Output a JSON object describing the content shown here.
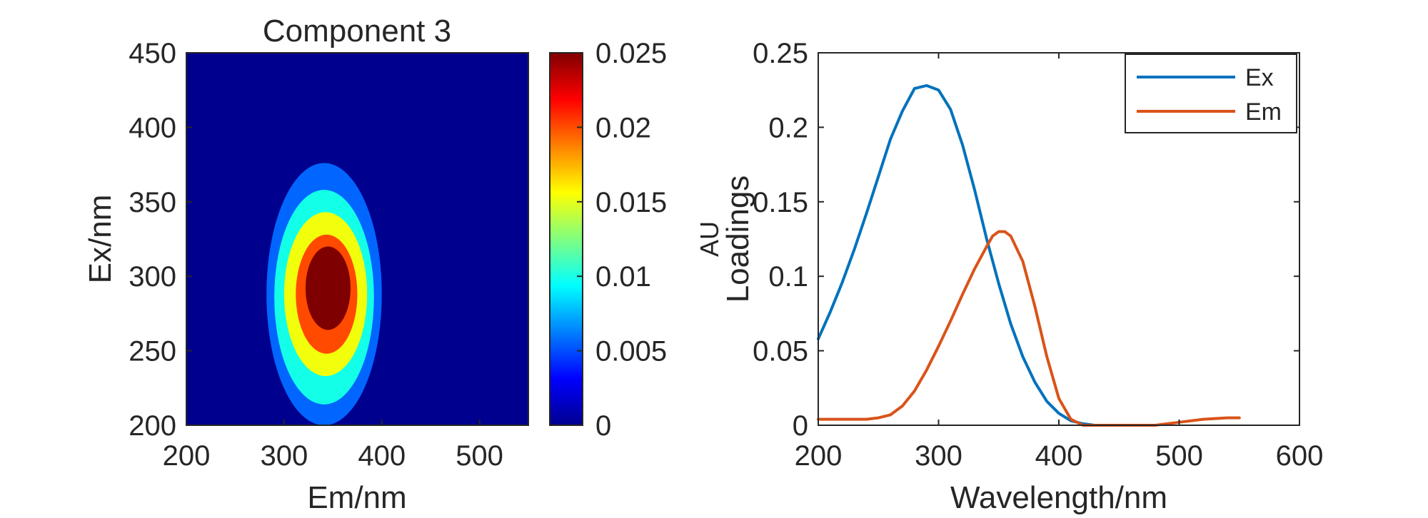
{
  "chart_data": [
    {
      "type": "contour",
      "title": "Component 3",
      "xlabel": "Em/nm",
      "ylabel": "Ex/nm",
      "xlim": [
        200,
        550
      ],
      "ylim": [
        200,
        450
      ],
      "x_ticks": [
        "200",
        "300",
        "400",
        "500"
      ],
      "y_ticks": [
        "200",
        "250",
        "300",
        "350",
        "400",
        "450"
      ],
      "peak": {
        "em": 350,
        "ex": 292,
        "value": 0.025
      },
      "levels": [
        {
          "value": 0.0,
          "color": "#00008f",
          "em_min": 200,
          "em_max": 550,
          "ex_min": 200,
          "ex_max": 450
        },
        {
          "value": 0.00417,
          "color": "#0066ff",
          "em_min": 282,
          "em_max": 400,
          "ex_min": 200,
          "ex_max": 376
        },
        {
          "value": 0.00833,
          "color": "#13ffe8",
          "em_min": 290,
          "em_max": 392,
          "ex_min": 214,
          "ex_max": 358
        },
        {
          "value": 0.0125,
          "color": "#f2ff0c",
          "em_min": 300,
          "em_max": 385,
          "ex_min": 233,
          "ex_max": 343
        },
        {
          "value": 0.01667,
          "color": "#ff4a00",
          "em_min": 312,
          "em_max": 375,
          "ex_min": 248,
          "ex_max": 328
        },
        {
          "value": 0.02083,
          "color": "#7f0000",
          "em_min": 322,
          "em_max": 368,
          "ex_min": 264,
          "ex_max": 320
        }
      ],
      "colorbar": {
        "min": 0,
        "max": 0.025,
        "ticks": [
          "0",
          "0.005",
          "0.01",
          "0.015",
          "0.02",
          "0.025"
        ],
        "colormap": [
          "#00008f",
          "#0000ff",
          "#0080ff",
          "#00ffff",
          "#80ff80",
          "#ffff00",
          "#ff8000",
          "#ff0000",
          "#800000"
        ]
      }
    },
    {
      "type": "line",
      "title": "",
      "xlabel": "Wavelength/nm",
      "ylabel_lines": [
        "AU",
        "Loadings"
      ],
      "xlim": [
        200,
        600
      ],
      "ylim": [
        0,
        0.25
      ],
      "x_ticks": [
        "200",
        "300",
        "400",
        "500",
        "600"
      ],
      "y_ticks": [
        "0",
        "0.05",
        "0.1",
        "0.15",
        "0.2",
        "0.25"
      ],
      "legend_position": "top-right",
      "series": [
        {
          "name": "Ex",
          "color": "#0072bd",
          "x": [
            200,
            210,
            220,
            230,
            240,
            250,
            260,
            270,
            280,
            290,
            300,
            310,
            320,
            330,
            340,
            350,
            360,
            370,
            380,
            390,
            400,
            410,
            420,
            430
          ],
          "y": [
            0.058,
            0.076,
            0.096,
            0.118,
            0.142,
            0.167,
            0.192,
            0.211,
            0.226,
            0.228,
            0.225,
            0.212,
            0.188,
            0.158,
            0.125,
            0.095,
            0.068,
            0.046,
            0.029,
            0.016,
            0.008,
            0.003,
            0.001,
            0.0
          ]
        },
        {
          "name": "Em",
          "color": "#d95319",
          "x": [
            200,
            220,
            240,
            250,
            260,
            270,
            280,
            290,
            300,
            310,
            320,
            330,
            340,
            345,
            350,
            355,
            360,
            370,
            380,
            390,
            400,
            410,
            420,
            440,
            460,
            480,
            500,
            520,
            540,
            550
          ],
          "y": [
            0.004,
            0.004,
            0.004,
            0.005,
            0.007,
            0.013,
            0.023,
            0.037,
            0.053,
            0.07,
            0.088,
            0.105,
            0.12,
            0.127,
            0.13,
            0.13,
            0.127,
            0.11,
            0.08,
            0.046,
            0.018,
            0.004,
            0.0,
            0.0,
            0.0,
            0.0,
            0.002,
            0.004,
            0.005,
            0.005
          ]
        }
      ]
    }
  ]
}
